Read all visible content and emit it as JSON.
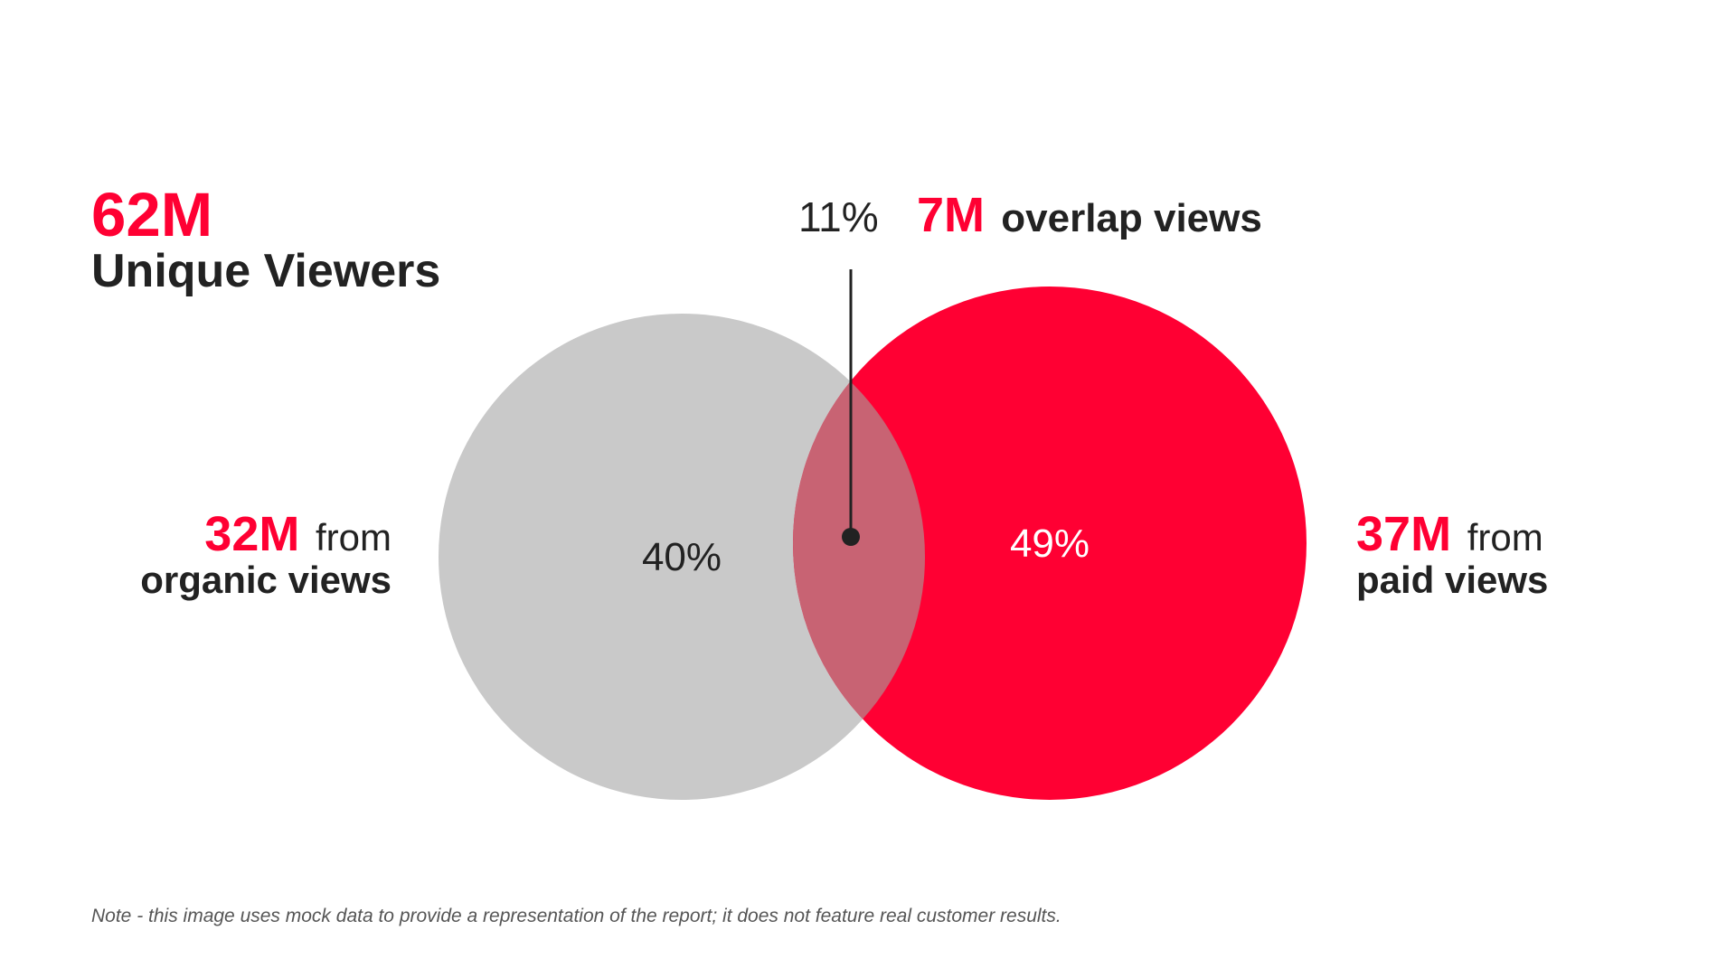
{
  "headline": {
    "value": "62M",
    "label": "Unique Viewers"
  },
  "overlap": {
    "percent": "11%",
    "value": "7M",
    "label": "overlap views"
  },
  "organic": {
    "percent": "40%",
    "value": "32M",
    "suffix": "from",
    "label": "organic views"
  },
  "paid": {
    "percent": "49%",
    "value": "37M",
    "suffix": "from",
    "label": "paid views"
  },
  "note": "Note - this image uses mock data to provide a representation of the report; it does not feature real customer results."
}
